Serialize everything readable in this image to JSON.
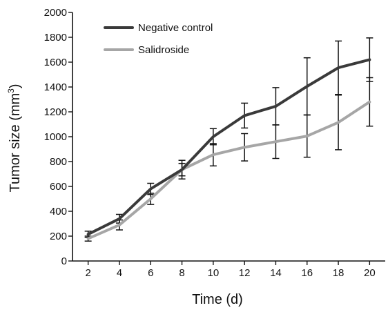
{
  "chart_data": {
    "type": "line",
    "title": "",
    "xlabel": "Time (d)",
    "ylabel": "Tumor size (mm³)",
    "ylabel_main": "Tumor size (mm",
    "ylabel_sup": "3",
    "ylabel_end": ")",
    "x": [
      2,
      4,
      6,
      8,
      10,
      12,
      14,
      16,
      18,
      20
    ],
    "x_tick_labels": [
      "2",
      "4",
      "6",
      "8",
      "10",
      "12",
      "14",
      "16",
      "18",
      "20"
    ],
    "y_tick_values": [
      0,
      200,
      400,
      600,
      800,
      1000,
      1200,
      1400,
      1600,
      1800,
      2000
    ],
    "y_tick_labels": [
      "0",
      "200",
      "400",
      "600",
      "800",
      "1000",
      "1200",
      "1400",
      "1600",
      "1800",
      "2000"
    ],
    "xlim": [
      1,
      21
    ],
    "ylim": [
      0,
      2000
    ],
    "grid": false,
    "legend_position": "top-left",
    "series": [
      {
        "name": "Negative control",
        "color": "#3a3a3a",
        "values": [
          215,
          340,
          580,
          735,
          1000,
          1170,
          1245,
          1405,
          1555,
          1620
        ],
        "error": [
          25,
          35,
          45,
          75,
          65,
          100,
          150,
          230,
          215,
          175
        ]
      },
      {
        "name": "Salidroside",
        "color": "#a6a6a6",
        "values": [
          180,
          290,
          500,
          735,
          855,
          915,
          960,
          1005,
          1115,
          1280
        ],
        "error": [
          20,
          40,
          45,
          50,
          90,
          110,
          135,
          170,
          220,
          195
        ]
      }
    ]
  }
}
